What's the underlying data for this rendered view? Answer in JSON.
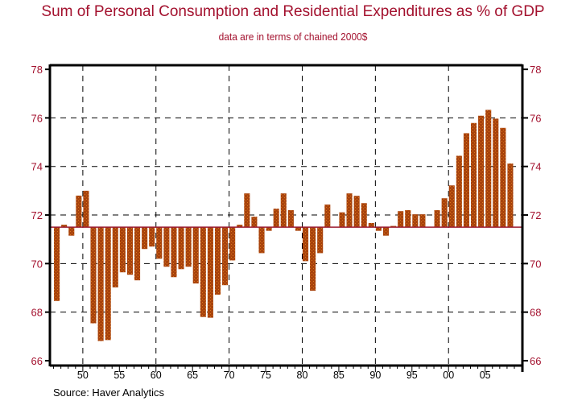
{
  "chart_data": {
    "type": "bar",
    "title": "Sum of Personal Consumption and Residential Expenditures as % of GDP",
    "subtitle": "data are in terms of chained 2000$",
    "source": "Source: Haver Analytics",
    "xlabel": "",
    "ylabel": "",
    "baseline": 71.5,
    "xlim": [
      1945.5,
      2010.1
    ],
    "ylim": [
      65.8,
      78.17
    ],
    "grid": true,
    "legend": "none",
    "yticks": [
      66,
      68,
      70,
      72,
      74,
      76,
      78
    ],
    "ytick_labels": [
      "66",
      "68",
      "70",
      "72",
      "74",
      "76",
      "78"
    ],
    "xticks": [
      1950,
      1955,
      1960,
      1965,
      1970,
      1975,
      1980,
      1985,
      1990,
      1995,
      2000,
      2005
    ],
    "xtick_labels": [
      "50",
      "55",
      "60",
      "65",
      "70",
      "75",
      "80",
      "85",
      "90",
      "95",
      "00",
      "05"
    ],
    "xgrid": [
      1950,
      1960,
      1970,
      1980,
      1990,
      2000
    ],
    "ygrid": [
      68,
      70,
      72,
      74,
      76
    ],
    "colors": {
      "bar": "#A8420C",
      "bar_dots": "#D9781C",
      "baseline": "#9B1B30",
      "text": "#A3112E"
    },
    "x": [
      1946,
      1947,
      1948,
      1949,
      1950,
      1951,
      1952,
      1953,
      1954,
      1955,
      1956,
      1957,
      1958,
      1959,
      1960,
      1961,
      1962,
      1963,
      1964,
      1965,
      1966,
      1967,
      1968,
      1969,
      1970,
      1971,
      1972,
      1973,
      1974,
      1975,
      1976,
      1977,
      1978,
      1979,
      1980,
      1981,
      1982,
      1983,
      1984,
      1985,
      1986,
      1987,
      1988,
      1989,
      1990,
      1991,
      1992,
      1993,
      1994,
      1995,
      1996,
      1997,
      1998,
      1999,
      2000,
      2001,
      2002,
      2003,
      2004,
      2005,
      2006,
      2007,
      2008
    ],
    "values": [
      68.46,
      71.6,
      71.15,
      72.8,
      73.0,
      67.54,
      66.81,
      66.85,
      69.02,
      69.64,
      69.54,
      69.31,
      70.6,
      70.7,
      70.2,
      69.87,
      69.44,
      69.77,
      69.87,
      69.18,
      67.8,
      67.77,
      68.72,
      69.11,
      70.13,
      71.6,
      72.89,
      71.93,
      70.43,
      71.35,
      72.26,
      72.89,
      72.2,
      71.35,
      70.1,
      68.88,
      70.43,
      72.43,
      71.5,
      72.11,
      72.89,
      72.79,
      72.49,
      71.67,
      71.35,
      71.15,
      71.55,
      72.16,
      72.2,
      72.03,
      72.03,
      71.5,
      72.2,
      72.69,
      73.22,
      74.44,
      75.37,
      75.79,
      76.09,
      76.33,
      75.97,
      75.59,
      74.12
    ]
  }
}
